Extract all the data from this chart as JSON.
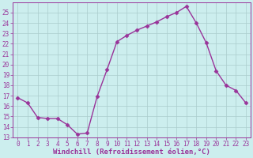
{
  "x": [
    0,
    1,
    2,
    3,
    4,
    5,
    6,
    7,
    8,
    9,
    10,
    11,
    12,
    13,
    14,
    15,
    16,
    17,
    18,
    19,
    20,
    21,
    22,
    23
  ],
  "y": [
    16.8,
    16.3,
    14.9,
    14.8,
    14.8,
    14.2,
    13.3,
    13.4,
    16.9,
    19.5,
    22.2,
    22.8,
    23.3,
    23.7,
    24.1,
    24.6,
    25.0,
    25.6,
    24.0,
    22.1,
    19.4,
    18.0,
    17.5,
    16.3
  ],
  "line_color": "#993399",
  "marker": "D",
  "marker_size": 2.5,
  "bg_color": "#cceeee",
  "grid_color": "#aacccc",
  "xlabel": "Windchill (Refroidissement éolien,°C)",
  "ylim": [
    13,
    26
  ],
  "xlim_min": -0.5,
  "xlim_max": 23.5,
  "yticks": [
    13,
    14,
    15,
    16,
    17,
    18,
    19,
    20,
    21,
    22,
    23,
    24,
    25
  ],
  "xticks": [
    0,
    1,
    2,
    3,
    4,
    5,
    6,
    7,
    8,
    9,
    10,
    11,
    12,
    13,
    14,
    15,
    16,
    17,
    18,
    19,
    20,
    21,
    22,
    23
  ],
  "xlabel_color": "#993399",
  "tick_color": "#993399",
  "axis_color": "#993399",
  "tick_fontsize": 5.5,
  "xlabel_fontsize": 6.5,
  "linewidth": 1.0,
  "figwidth": 3.2,
  "figheight": 2.0,
  "dpi": 100
}
